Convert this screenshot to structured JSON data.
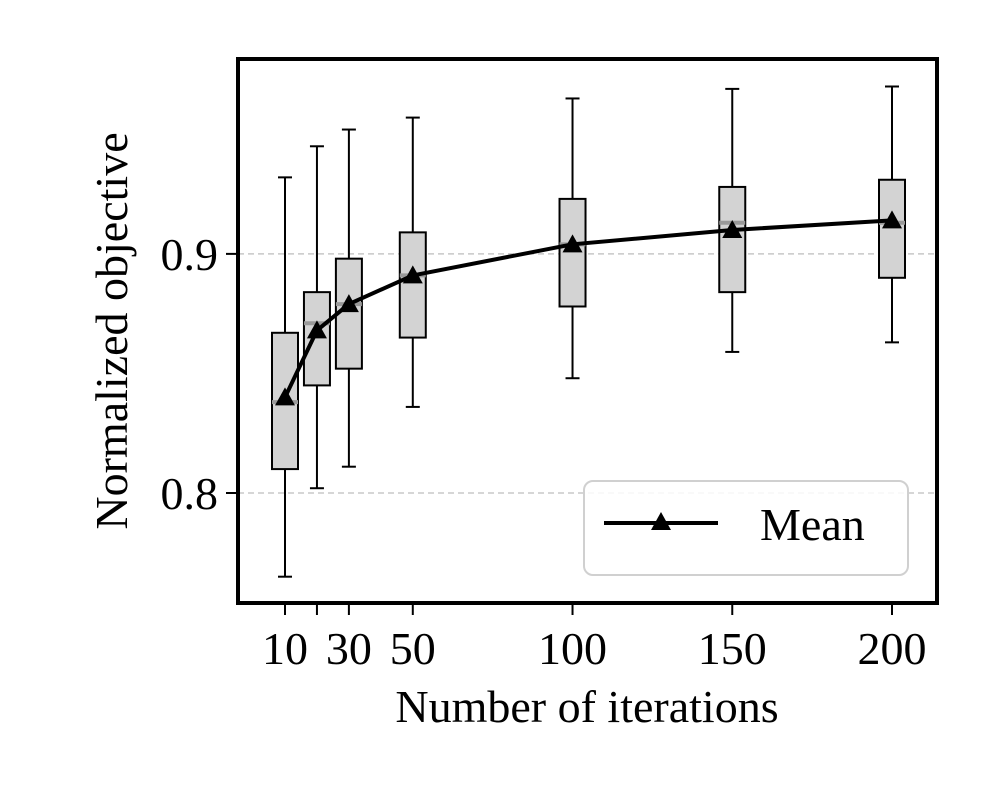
{
  "chart_data": {
    "type": "box",
    "title": "",
    "xlabel": "Number of iterations",
    "ylabel": "Normalized objective",
    "xlim": [
      0,
      210
    ],
    "ylim": [
      0.754,
      0.9815
    ],
    "grid": "y-dashed",
    "x_ticks": [
      {
        "value": 10,
        "label": "10"
      },
      {
        "value": 20,
        "label": ""
      },
      {
        "value": 30,
        "label": "30"
      },
      {
        "value": 50,
        "label": "50"
      },
      {
        "value": 100,
        "label": "100"
      },
      {
        "value": 150,
        "label": "150"
      },
      {
        "value": 200,
        "label": "200"
      }
    ],
    "y_ticks": [
      {
        "value": 0.8,
        "label": "0.8"
      },
      {
        "value": 0.9,
        "label": "0.9"
      }
    ],
    "boxes": [
      {
        "x": 10,
        "whisker_low": 0.765,
        "q1": 0.81,
        "median": 0.838,
        "q3": 0.867,
        "whisker_high": 0.932
      },
      {
        "x": 20,
        "whisker_low": 0.802,
        "q1": 0.845,
        "median": 0.871,
        "q3": 0.884,
        "whisker_high": 0.945
      },
      {
        "x": 30,
        "whisker_low": 0.811,
        "q1": 0.852,
        "median": 0.879,
        "q3": 0.898,
        "whisker_high": 0.952
      },
      {
        "x": 50,
        "whisker_low": 0.836,
        "q1": 0.865,
        "median": 0.891,
        "q3": 0.909,
        "whisker_high": 0.957
      },
      {
        "x": 100,
        "whisker_low": 0.848,
        "q1": 0.878,
        "median": 0.904,
        "q3": 0.923,
        "whisker_high": 0.965
      },
      {
        "x": 150,
        "whisker_low": 0.859,
        "q1": 0.884,
        "median": 0.913,
        "q3": 0.928,
        "whisker_high": 0.969
      },
      {
        "x": 200,
        "whisker_low": 0.863,
        "q1": 0.89,
        "median": 0.913,
        "q3": 0.931,
        "whisker_high": 0.97
      }
    ],
    "series": [
      {
        "name": "Mean",
        "x": [
          10,
          20,
          30,
          50,
          100,
          150,
          200
        ],
        "values": [
          0.84,
          0.868,
          0.879,
          0.891,
          0.904,
          0.91,
          0.914
        ],
        "color": "#000000",
        "marker": "triangle"
      }
    ],
    "legend": {
      "position": "bottom-right",
      "entries": [
        "Mean"
      ]
    },
    "colors": {
      "box_fill": "#d3d3d3",
      "median_line": "#999999",
      "grid": "#c8c8c8",
      "axis": "#000000"
    }
  }
}
